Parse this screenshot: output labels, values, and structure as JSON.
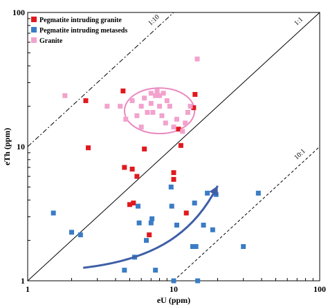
{
  "chart_data": {
    "type": "scatter",
    "xlabel": "eU (ppm)",
    "ylabel": "eTh (ppm)",
    "xscale": "log",
    "yscale": "log",
    "xlim": [
      1,
      100
    ],
    "ylim": [
      1,
      100
    ],
    "x_ticks": [
      "1",
      "10",
      "100"
    ],
    "y_ticks": [
      "1",
      "10",
      "100"
    ],
    "legend_position": "top-left",
    "series": [
      {
        "name": "Pegmatite intruding granite",
        "color": "#e0191e",
        "marker": "square",
        "points": [
          [
            2.5,
            22
          ],
          [
            2.6,
            9.8
          ],
          [
            4.5,
            26
          ],
          [
            4.6,
            7.0
          ],
          [
            5.2,
            6.8
          ],
          [
            5.6,
            6.0
          ],
          [
            6.3,
            9.6
          ],
          [
            5.0,
            3.7
          ],
          [
            5.3,
            3.8
          ],
          [
            6.8,
            2.2
          ],
          [
            10.0,
            6.4
          ],
          [
            10.0,
            5.7
          ],
          [
            10.8,
            13.5
          ],
          [
            11.2,
            10.2
          ],
          [
            12.2,
            3.2
          ],
          [
            13.7,
            19.5
          ],
          [
            14.0,
            24.5
          ]
        ]
      },
      {
        "name": "Pegmatite intruding metaseds",
        "color": "#3a7cc6",
        "marker": "square",
        "points": [
          [
            1.5,
            3.2
          ],
          [
            2.0,
            2.3
          ],
          [
            2.3,
            2.2
          ],
          [
            4.6,
            1.2
          ],
          [
            5.4,
            1.5
          ],
          [
            5.7,
            3.6
          ],
          [
            5.8,
            2.7
          ],
          [
            6.5,
            2.0
          ],
          [
            7.0,
            2.7
          ],
          [
            7.1,
            2.9
          ],
          [
            7.5,
            1.2
          ],
          [
            9.7,
            3.6
          ],
          [
            9.6,
            5.0
          ],
          [
            10.0,
            1.0
          ],
          [
            10.5,
            2.6
          ],
          [
            13.5,
            1.8
          ],
          [
            13.9,
            3.8
          ],
          [
            14.2,
            1.8
          ],
          [
            14.6,
            1.0
          ],
          [
            16.0,
            2.6
          ],
          [
            17.0,
            4.5
          ],
          [
            18.5,
            2.4
          ],
          [
            19.5,
            4.4
          ],
          [
            30.0,
            1.8
          ],
          [
            38.0,
            4.5
          ]
        ]
      },
      {
        "name": "Granite",
        "color": "#f2a2cc",
        "marker": "square",
        "points": [
          [
            1.8,
            24
          ],
          [
            3.5,
            20
          ],
          [
            4.3,
            20
          ],
          [
            4.7,
            16
          ],
          [
            5.2,
            22
          ],
          [
            5.6,
            17
          ],
          [
            6.0,
            20
          ],
          [
            6.3,
            23
          ],
          [
            6.6,
            18
          ],
          [
            7.0,
            21
          ],
          [
            7.2,
            18
          ],
          [
            7.5,
            24
          ],
          [
            7.7,
            26
          ],
          [
            7.0,
            25
          ],
          [
            8.0,
            24
          ],
          [
            8.3,
            17
          ],
          [
            8.8,
            15
          ],
          [
            8.0,
            20
          ],
          [
            9.4,
            20
          ],
          [
            10.0,
            14
          ],
          [
            10.5,
            16
          ],
          [
            11.5,
            13
          ],
          [
            12.0,
            15
          ],
          [
            12.5,
            18
          ],
          [
            13.0,
            20
          ],
          [
            9.0,
            22
          ],
          [
            6.0,
            14
          ],
          [
            8.5,
            25
          ],
          [
            14.5,
            45
          ]
        ]
      }
    ],
    "reference_lines": [
      {
        "label": "1:10",
        "ratio": 10,
        "style": "dash-dot"
      },
      {
        "label": "1:1",
        "ratio": 1,
        "style": "solid"
      },
      {
        "label": "10:1",
        "ratio": 0.1,
        "style": "dashed"
      }
    ],
    "annotations": [
      {
        "type": "ellipse",
        "color": "#e98ac0",
        "center": [
          8.0,
          18.5
        ],
        "semi_axes_log": [
          0.24,
          0.17
        ]
      },
      {
        "type": "curved-arrow",
        "color": "#3f5fa6",
        "path": [
          [
            2.4,
            1.25
          ],
          [
            8.0,
            1.45
          ],
          [
            14.0,
            2.4
          ],
          [
            20.0,
            5.1
          ]
        ]
      }
    ]
  }
}
